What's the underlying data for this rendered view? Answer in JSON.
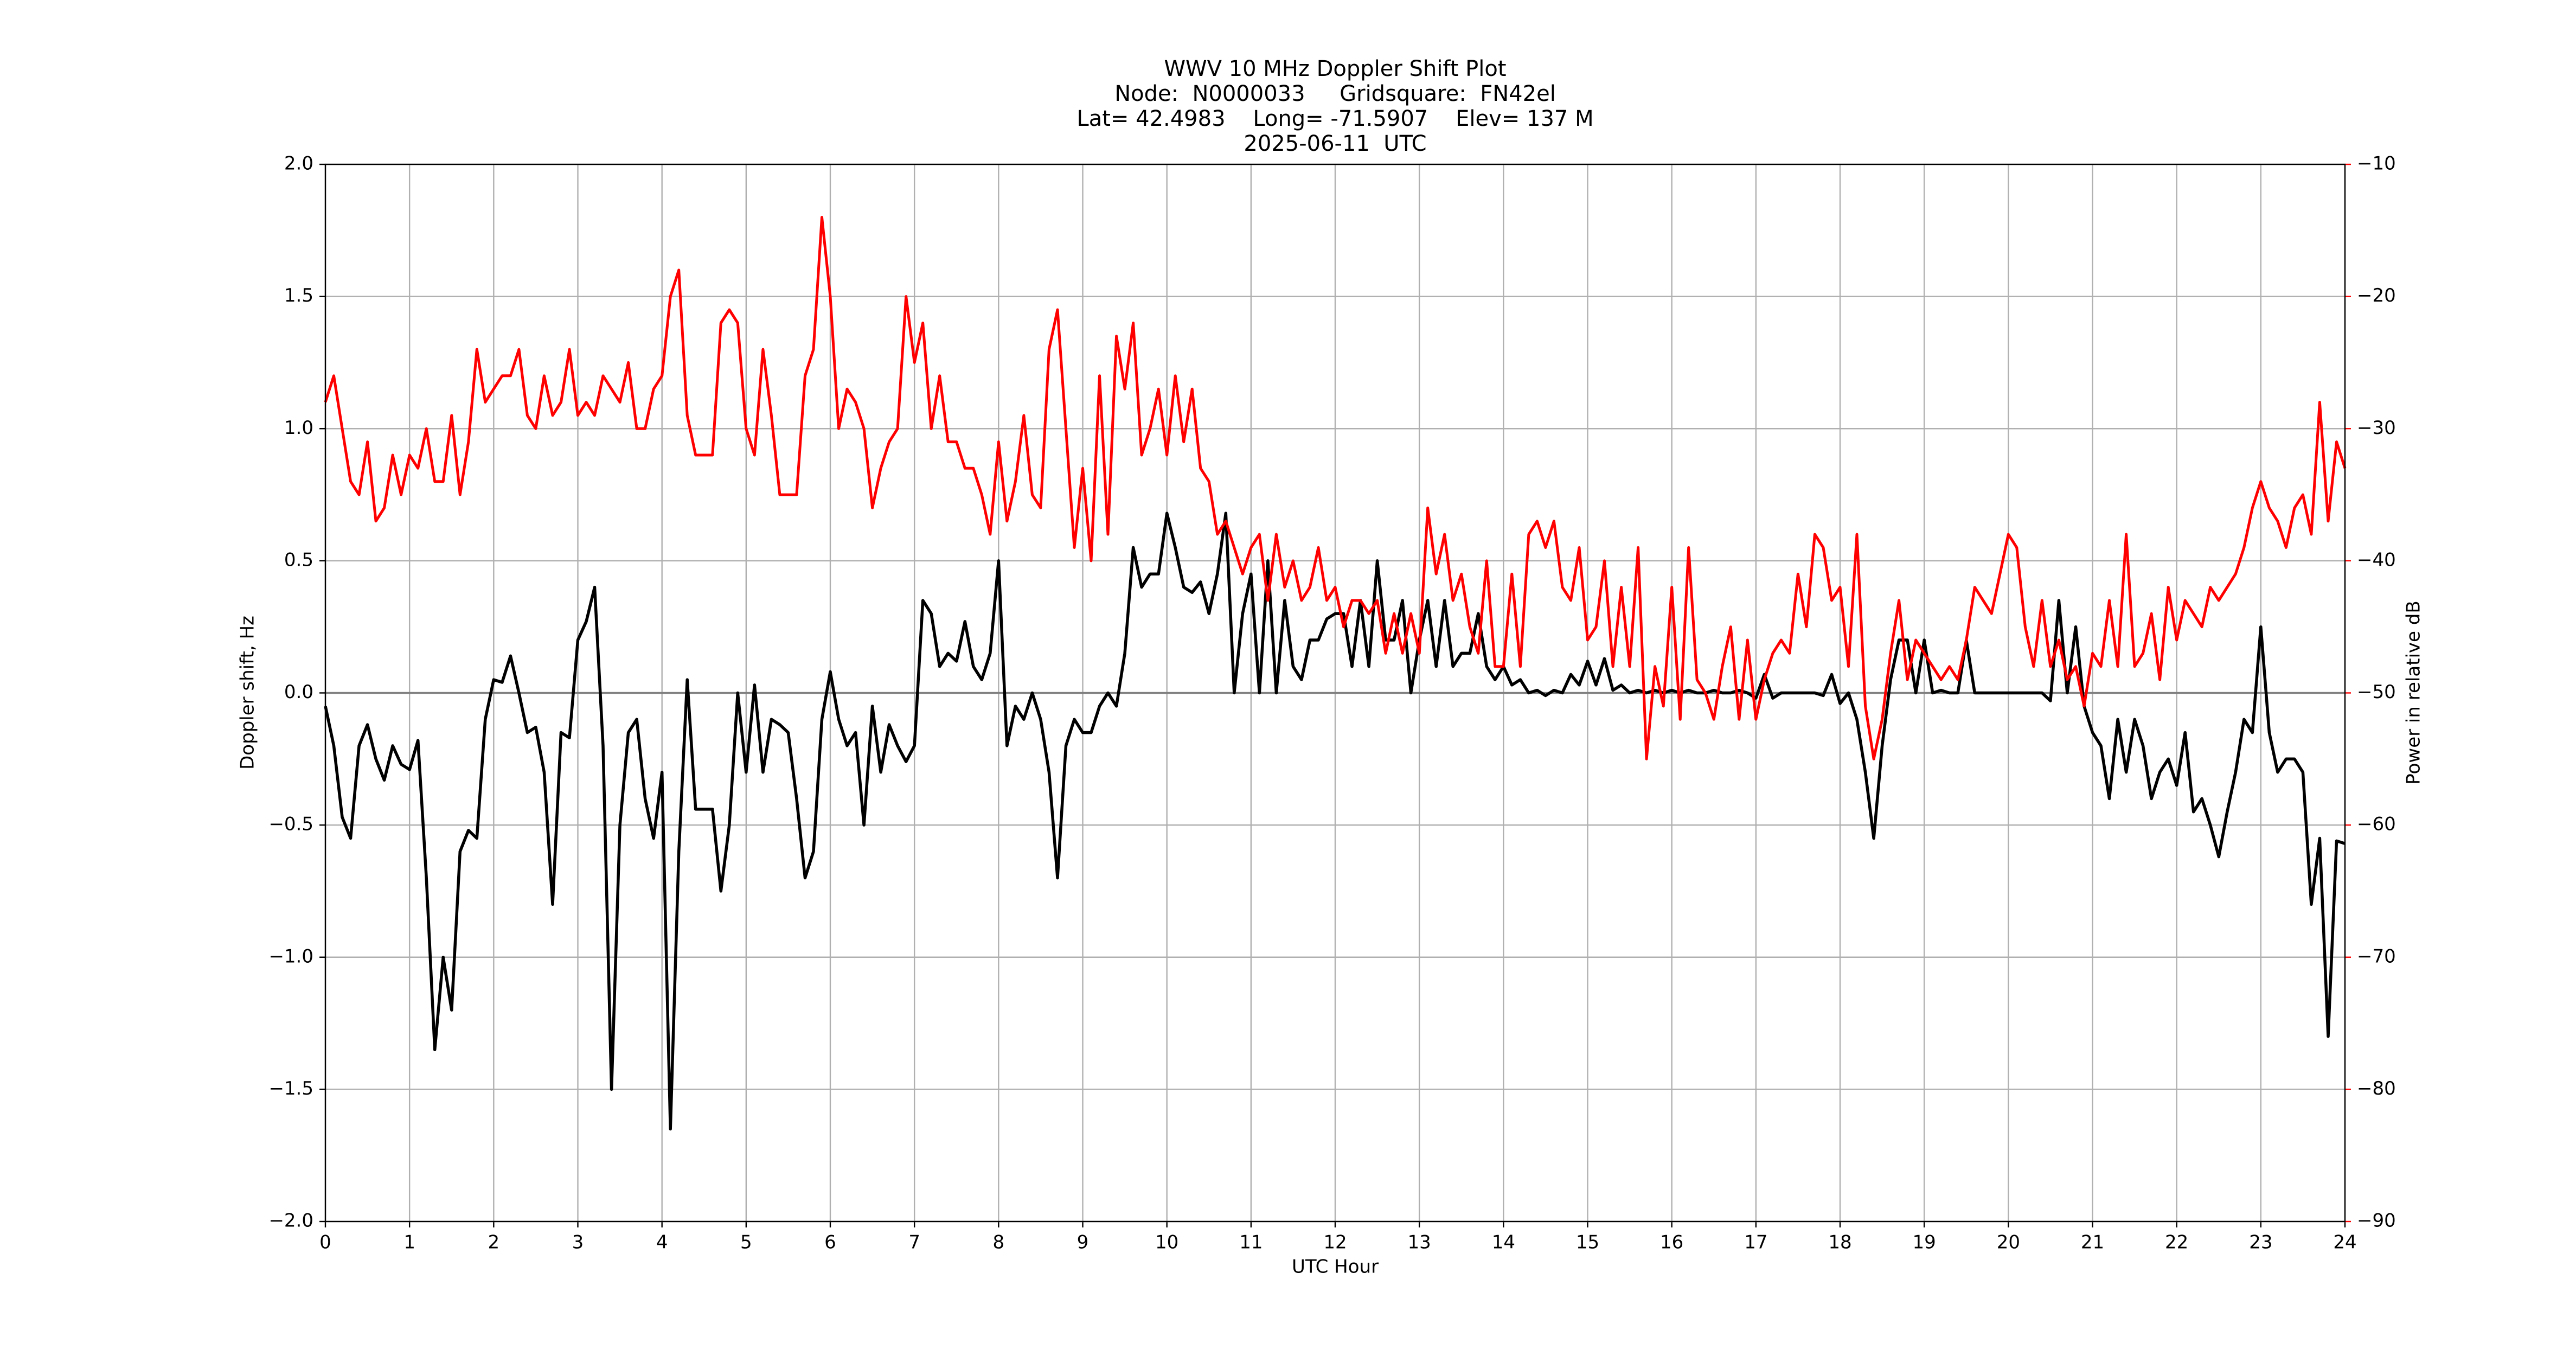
{
  "chart_data": {
    "type": "line",
    "title": "WWV 10 MHz Doppler Shift Plot",
    "subtitle": [
      "Node:  N0000033     Gridsquare:  FN42el",
      "Lat= 42.4983    Long= -71.5907    Elev= 137 M",
      "2025-06-11  UTC"
    ],
    "xlabel": "UTC Hour",
    "ylabel": "Doppler shift, Hz",
    "y2label": "Power in relative dB",
    "grid": true,
    "xlim": [
      0,
      24
    ],
    "xticks": [
      0,
      1,
      2,
      3,
      4,
      5,
      6,
      7,
      8,
      9,
      10,
      11,
      12,
      13,
      14,
      15,
      16,
      17,
      18,
      19,
      20,
      21,
      22,
      23,
      24
    ],
    "ylim": [
      -2,
      2
    ],
    "yticks": [
      {
        "value": -2,
        "label": "−2.0"
      },
      {
        "value": -1.5,
        "label": "−1.5"
      },
      {
        "value": -1,
        "label": "−1.0"
      },
      {
        "value": -0.5,
        "label": "−0.5"
      },
      {
        "value": 0,
        "label": "0.0"
      },
      0.5,
      {
        "value": 1,
        "label": "1.0"
      },
      1.5,
      {
        "value": 2,
        "label": "2.0"
      }
    ],
    "y2lim": [
      -90,
      -10
    ],
    "y2ticks": [
      {
        "value": -90,
        "label": "−90"
      },
      {
        "value": -80,
        "label": "−80"
      },
      {
        "value": -70,
        "label": "−70"
      },
      {
        "value": -60,
        "label": "−60"
      },
      {
        "value": -50,
        "label": "−50"
      },
      {
        "value": -40,
        "label": "−40"
      },
      {
        "value": -30,
        "label": "−30"
      },
      {
        "value": -20,
        "label": "−20"
      },
      {
        "value": -10,
        "label": "−10"
      }
    ],
    "x": [
      0,
      0.1,
      0.2,
      0.3,
      0.4,
      0.5,
      0.6,
      0.7,
      0.8,
      0.9,
      1,
      1.1,
      1.2,
      1.3,
      1.4,
      1.5,
      1.6,
      1.7,
      1.8,
      1.9,
      2,
      2.1,
      2.2,
      2.3,
      2.4,
      2.5,
      2.6,
      2.7,
      2.8,
      2.9,
      3,
      3.1,
      3.2,
      3.3,
      3.4,
      3.5,
      3.6,
      3.7,
      3.8,
      3.9,
      4,
      4.1,
      4.2,
      4.3,
      4.4,
      4.5,
      4.6,
      4.7,
      4.8,
      4.9,
      5,
      5.1,
      5.2,
      5.3,
      5.4,
      5.5,
      5.6,
      5.7,
      5.8,
      5.9,
      6,
      6.1,
      6.2,
      6.3,
      6.4,
      6.5,
      6.6,
      6.7,
      6.8,
      6.9,
      7,
      7.1,
      7.2,
      7.3,
      7.4,
      7.5,
      7.6,
      7.7,
      7.8,
      7.9,
      8,
      8.1,
      8.2,
      8.3,
      8.4,
      8.5,
      8.6,
      8.7,
      8.8,
      8.9,
      9,
      9.1,
      9.2,
      9.3,
      9.4,
      9.5,
      9.6,
      9.7,
      9.8,
      9.9,
      10,
      10.1,
      10.2,
      10.3,
      10.4,
      10.5,
      10.6,
      10.7,
      10.8,
      10.9,
      11,
      11.1,
      11.2,
      11.3,
      11.4,
      11.5,
      11.6,
      11.7,
      11.8,
      11.9,
      12,
      12.1,
      12.2,
      12.3,
      12.4,
      12.5,
      12.6,
      12.7,
      12.8,
      12.9,
      13,
      13.1,
      13.2,
      13.3,
      13.4,
      13.5,
      13.6,
      13.7,
      13.8,
      13.9,
      14,
      14.1,
      14.2,
      14.3,
      14.4,
      14.5,
      14.6,
      14.7,
      14.8,
      14.9,
      15,
      15.1,
      15.2,
      15.3,
      15.4,
      15.5,
      15.6,
      15.7,
      15.8,
      15.9,
      16,
      16.1,
      16.2,
      16.3,
      16.4,
      16.5,
      16.6,
      16.7,
      16.8,
      16.9,
      17,
      17.1,
      17.2,
      17.3,
      17.4,
      17.5,
      17.6,
      17.7,
      17.8,
      17.9,
      18,
      18.1,
      18.2,
      18.3,
      18.4,
      18.5,
      18.6,
      18.7,
      18.8,
      18.9,
      19,
      19.1,
      19.2,
      19.3,
      19.4,
      19.5,
      19.6,
      19.7,
      19.8,
      19.9,
      20,
      20.1,
      20.2,
      20.3,
      20.4,
      20.5,
      20.6,
      20.7,
      20.8,
      20.9,
      21,
      21.1,
      21.2,
      21.3,
      21.4,
      21.5,
      21.6,
      21.7,
      21.8,
      21.9,
      22,
      22.1,
      22.2,
      22.3,
      22.4,
      22.5,
      22.6,
      22.7,
      22.8,
      22.9,
      23,
      23.1,
      23.2,
      23.3,
      23.4,
      23.5,
      23.6,
      23.7,
      23.8,
      23.9,
      24
    ],
    "series": [
      {
        "color": "#000000",
        "values": [
          -0.05,
          -0.2,
          -0.47,
          -0.55,
          -0.2,
          -0.12,
          -0.25,
          -0.33,
          -0.2,
          -0.27,
          -0.29,
          -0.18,
          -0.7,
          -1.35,
          -1.0,
          -1.2,
          -0.6,
          -0.52,
          -0.55,
          -0.1,
          0.05,
          0.04,
          0.14,
          0.0,
          -0.15,
          -0.13,
          -0.3,
          -0.8,
          -0.15,
          -0.17,
          0.2,
          0.27,
          0.4,
          -0.2,
          -1.5,
          -0.5,
          -0.15,
          -0.1,
          -0.4,
          -0.55,
          -0.3,
          -1.65,
          -0.6,
          0.05,
          -0.44,
          -0.44,
          -0.44,
          -0.75,
          -0.5,
          0.0,
          -0.3,
          0.03,
          -0.3,
          -0.1,
          -0.12,
          -0.15,
          -0.4,
          -0.7,
          -0.6,
          -0.1,
          0.08,
          -0.1,
          -0.2,
          -0.15,
          -0.5,
          -0.05,
          -0.3,
          -0.12,
          -0.2,
          -0.26,
          -0.2,
          0.35,
          0.3,
          0.1,
          0.15,
          0.12,
          0.27,
          0.1,
          0.05,
          0.15,
          0.5,
          -0.2,
          -0.05,
          -0.1,
          0.0,
          -0.1,
          -0.3,
          -0.7,
          -0.2,
          -0.1,
          -0.15,
          -0.15,
          -0.05,
          0.0,
          -0.05,
          0.15,
          0.55,
          0.4,
          0.45,
          0.45,
          0.68,
          0.55,
          0.4,
          0.38,
          0.42,
          0.3,
          0.45,
          0.68,
          0.0,
          0.3,
          0.45,
          0.0,
          0.5,
          0.0,
          0.35,
          0.1,
          0.05,
          0.2,
          0.2,
          0.28,
          0.3,
          0.3,
          0.1,
          0.35,
          0.1,
          0.5,
          0.2,
          0.2,
          0.35,
          0.0,
          0.2,
          0.35,
          0.1,
          0.35,
          0.1,
          0.15,
          0.15,
          0.3,
          0.1,
          0.05,
          0.1,
          0.03,
          0.05,
          0.0,
          0.01,
          -0.01,
          0.01,
          0.0,
          0.07,
          0.03,
          0.12,
          0.03,
          0.13,
          0.01,
          0.03,
          0.0,
          0.01,
          0.0,
          0.01,
          0.0,
          0.01,
          0.0,
          0.01,
          0.0,
          0.0,
          0.01,
          0.0,
          0.0,
          0.01,
          0.0,
          -0.02,
          0.07,
          -0.02,
          0.0,
          0.0,
          0.0,
          0.0,
          0.0,
          -0.01,
          0.07,
          -0.04,
          0.0,
          -0.1,
          -0.3,
          -0.55,
          -0.2,
          0.05,
          0.2,
          0.2,
          0.0,
          0.2,
          0.0,
          0.01,
          0.0,
          0.0,
          0.2,
          0.0,
          0.0,
          0.0,
          0.0,
          0.0,
          0.0,
          0.0,
          0.0,
          0.0,
          -0.03,
          0.35,
          0.0,
          0.25,
          -0.05,
          -0.15,
          -0.2,
          -0.4,
          -0.1,
          -0.3,
          -0.1,
          -0.2,
          -0.4,
          -0.3,
          -0.25,
          -0.35,
          -0.15,
          -0.45,
          -0.4,
          -0.5,
          -0.62,
          -0.45,
          -0.3,
          -0.1,
          -0.15,
          0.25,
          -0.15,
          -0.3,
          -0.25,
          -0.25,
          -0.3,
          -0.8,
          -0.55,
          -1.3,
          -0.56,
          -0.57
        ]
      },
      {
        "color": "#ff0000",
        "axis": "y2",
        "values": [
          -28,
          -26,
          -30,
          -34,
          -35,
          -31,
          -37,
          -36,
          -32,
          -35,
          -32,
          -33,
          -30,
          -34,
          -34,
          -29,
          -35,
          -31,
          -24,
          -28,
          -27,
          -26,
          -26,
          -24,
          -29,
          -30,
          -26,
          -29,
          -28,
          -24,
          -29,
          -28,
          -29,
          -26,
          -27,
          -28,
          -25,
          -30,
          -30,
          -27,
          -26,
          -20,
          -18,
          -29,
          -32,
          -32,
          -32,
          -22,
          -21,
          -22,
          -30,
          -32,
          -24,
          -29,
          -35,
          -35,
          -35,
          -26,
          -24,
          -14,
          -20,
          -30,
          -27,
          -28,
          -30,
          -36,
          -33,
          -31,
          -30,
          -20,
          -25,
          -22,
          -30,
          -26,
          -31,
          -31,
          -33,
          -33,
          -35,
          -38,
          -31,
          -37,
          -34,
          -29,
          -35,
          -36,
          -24,
          -21,
          -30,
          -39,
          -33,
          -40,
          -26,
          -38,
          -23,
          -27,
          -22,
          -32,
          -30,
          -27,
          -32,
          -26,
          -31,
          -27,
          -33,
          -34,
          -38,
          -37,
          -39,
          -41,
          -39,
          -38,
          -43,
          -38,
          -42,
          -40,
          -43,
          -42,
          -39,
          -43,
          -42,
          -45,
          -43,
          -43,
          -44,
          -43,
          -47,
          -44,
          -47,
          -44,
          -47,
          -36,
          -41,
          -38,
          -43,
          -41,
          -45,
          -47,
          -40,
          -48,
          -48,
          -41,
          -48,
          -38,
          -37,
          -39,
          -37,
          -42,
          -43,
          -39,
          -46,
          -45,
          -40,
          -48,
          -42,
          -48,
          -39,
          -55,
          -48,
          -51,
          -42,
          -52,
          -39,
          -49,
          -50,
          -52,
          -48,
          -45,
          -52,
          -46,
          -52,
          -49,
          -47,
          -46,
          -47,
          -41,
          -45,
          -38,
          -39,
          -43,
          -42,
          -48,
          -38,
          -51,
          -55,
          -52,
          -47,
          -43,
          -49,
          -46,
          -47,
          -48,
          -49,
          -48,
          -49,
          -46,
          -42,
          -43,
          -44,
          -41,
          -38,
          -39,
          -45,
          -48,
          -43,
          -48,
          -46,
          -49,
          -48,
          -51,
          -47,
          -48,
          -43,
          -48,
          -38,
          -48,
          -47,
          -44,
          -49,
          -42,
          -46,
          -43,
          -44,
          -45,
          -42,
          -43,
          -42,
          -41,
          -39,
          -36,
          -34,
          -36,
          -37,
          -39,
          -36,
          -35,
          -38,
          -28,
          -37,
          -31,
          -33
        ]
      }
    ]
  }
}
